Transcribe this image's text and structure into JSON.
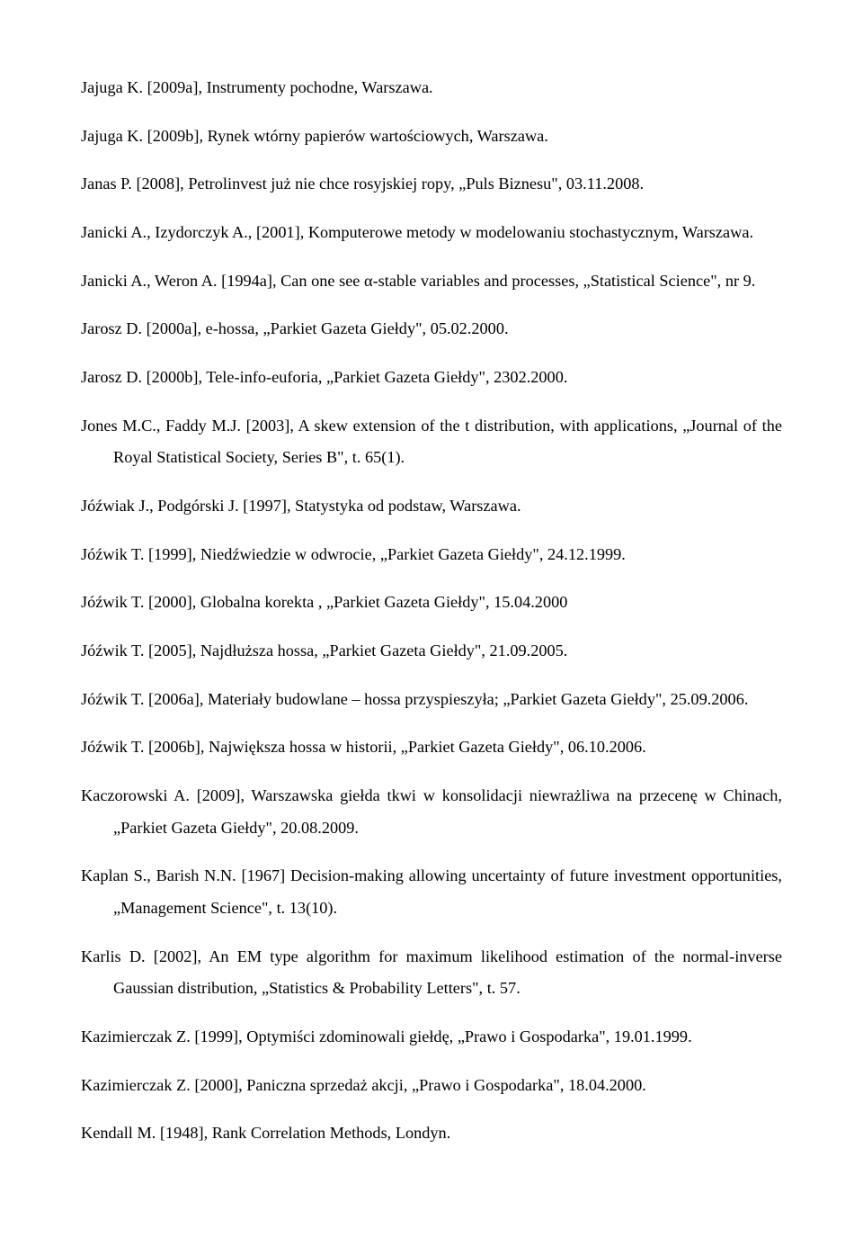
{
  "entries": [
    "Jajuga K. [2009a], Instrumenty pochodne, Warszawa.",
    "Jajuga K. [2009b], Rynek wtórny papierów wartościowych, Warszawa.",
    "Janas P. [2008], Petrolinvest już nie chce rosyjskiej ropy, „Puls Biznesu\", 03.11.2008.",
    "Janicki A., Izydorczyk A., [2001], Komputerowe metody w modelowaniu stochastycznym, Warszawa.",
    "Janicki A., Weron A. [1994a], Can one see α-stable variables and processes, „Statistical Science\", nr 9.",
    "Jarosz D. [2000a], e-hossa, „Parkiet Gazeta Giełdy\", 05.02.2000.",
    "Jarosz D. [2000b], Tele-info-euforia, „Parkiet Gazeta Giełdy\", 2302.2000.",
    "Jones M.C., Faddy M.J. [2003], A skew extension of the t distribution, with applications, „Journal of the Royal Statistical Society, Series B\", t. 65(1).",
    "Jóźwiak J., Podgórski J. [1997], Statystyka od podstaw, Warszawa.",
    "Jóźwik T. [1999], Niedźwiedzie w odwrocie, „Parkiet Gazeta Giełdy\", 24.12.1999.",
    "Jóźwik T. [2000], Globalna korekta , „Parkiet Gazeta Giełdy\", 15.04.2000",
    "Jóźwik T. [2005], Najdłuższa hossa, „Parkiet Gazeta Giełdy\", 21.09.2005.",
    "Jóźwik T. [2006a], Materiały budowlane – hossa przyspieszyła; „Parkiet Gazeta Giełdy\", 25.09.2006.",
    "Jóźwik T. [2006b], Największa hossa w historii, „Parkiet Gazeta Giełdy\", 06.10.2006.",
    "Kaczorowski A. [2009], Warszawska giełda tkwi w konsolidacji niewrażliwa na przecenę w Chinach, „Parkiet Gazeta Giełdy\", 20.08.2009.",
    "Kaplan S., Barish N.N. [1967] Decision-making allowing uncertainty of future investment opportunities, „Management Science\", t. 13(10).",
    "Karlis D. [2002], An EM type algorithm for maximum likelihood estimation of the normal-inverse Gaussian distribution, „Statistics & Probability Letters\", t. 57.",
    "Kazimierczak Z. [1999], Optymiści zdominowali giełdę, „Prawo i Gospodarka\", 19.01.1999.",
    "Kazimierczak Z. [2000], Paniczna sprzedaż akcji, „Prawo i Gospodarka\", 18.04.2000.",
    "Kendall M. [1948], Rank Correlation Methods, Londyn."
  ]
}
